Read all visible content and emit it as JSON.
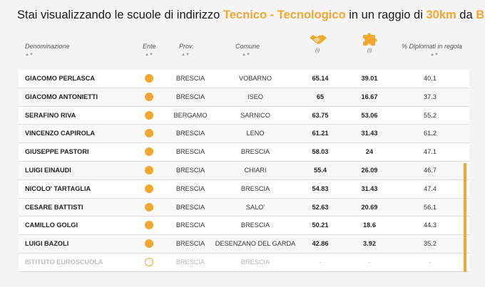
{
  "title": {
    "prefix": "Stai visualizzando le scuole di indirizzo ",
    "indirizzo": "Tecnico - Tecnologico",
    "middle": " in un raggio di ",
    "raggio": "30km",
    "da": " da ",
    "citta": "BRESCIA"
  },
  "headers": {
    "denominazione": "Denominazione",
    "ente": "Ente",
    "prov": "Prov.",
    "comune": "Comune",
    "info1": "(i)",
    "info2": "(i)",
    "diplomati": "% Diplomati in regola",
    "sort_glyph": "▲▼"
  },
  "icons": {
    "col1": "handshake-icon",
    "col2": "puzzle-icon",
    "accent": "#f2a72e"
  },
  "rows": [
    {
      "name": "GIACOMO PERLASCA",
      "prov": "BRESCIA",
      "comune": "VOBARNO",
      "v1": "65.14",
      "v2": "39.01",
      "v3": "40.1"
    },
    {
      "name": "GIACOMO ANTONIETTI",
      "prov": "BRESCIA",
      "comune": "ISEO",
      "v1": "65",
      "v2": "16.67",
      "v3": "37.3"
    },
    {
      "name": "SERAFINO RIVA",
      "prov": "BERGAMO",
      "comune": "SARNICO",
      "v1": "63.75",
      "v2": "53.06",
      "v3": "55.2"
    },
    {
      "name": "VINCENZO CAPIROLA",
      "prov": "BRESCIA",
      "comune": "LENO",
      "v1": "61.21",
      "v2": "31.43",
      "v3": "61.2"
    },
    {
      "name": "GIUSEPPE PASTORI",
      "prov": "BRESCIA",
      "comune": "BRESCIA",
      "v1": "58.03",
      "v2": "24",
      "v3": "47.1"
    },
    {
      "name": "LUIGI EINAUDI",
      "prov": "BRESCIA",
      "comune": "CHIARI",
      "v1": "55.4",
      "v2": "26.09",
      "v3": "46.7"
    },
    {
      "name": "NICOLO' TARTAGLIA",
      "prov": "BRESCIA",
      "comune": "BRESCIA",
      "v1": "54.83",
      "v2": "31.43",
      "v3": "47.4"
    },
    {
      "name": "CESARE BATTISTI",
      "prov": "BRESCIA",
      "comune": "SALO'",
      "v1": "52.63",
      "v2": "20.69",
      "v3": "56.1"
    },
    {
      "name": "CAMILLO GOLGI",
      "prov": "BRESCIA",
      "comune": "BRESCIA",
      "v1": "50.21",
      "v2": "18.6",
      "v3": "44.3"
    },
    {
      "name": "LUIGI BAZOLI",
      "prov": "BRESCIA",
      "comune": "DESENZANO DEL GARDA",
      "v1": "42.86",
      "v2": "3.92",
      "v3": "35.2"
    },
    {
      "name": "ISTITUTO EUROSCUOLA",
      "prov": "BRESCIA",
      "comune": "BRESCIA",
      "v1": "-",
      "v2": "-",
      "v3": "-",
      "dim": true
    }
  ]
}
